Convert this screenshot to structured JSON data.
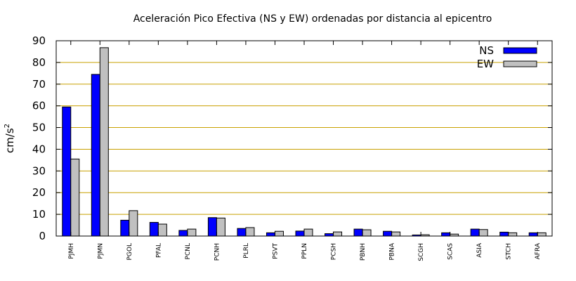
{
  "chart_data": {
    "type": "bar",
    "title": "Aceleración Pico Efectiva (NS y EW) ordenadas por distancia al epicentro",
    "xlabel": "",
    "ylabel": "cm/s",
    "ylabel_sup": "2",
    "ylim": [
      0,
      90
    ],
    "yticks": [
      0,
      10,
      20,
      30,
      40,
      50,
      60,
      70,
      80,
      90
    ],
    "grid": true,
    "legend_position": "top-right",
    "categories": [
      "PJMH",
      "PJMN",
      "PGOL",
      "PFAL",
      "PCNL",
      "PCNH",
      "PLRL",
      "PSVT",
      "PPLN",
      "PCSH",
      "PBNH",
      "PBNA",
      "SCGH",
      "SCAS",
      "ASIA",
      "STCH",
      "AFRA"
    ],
    "series": [
      {
        "name": "NS",
        "color": "#0000ff",
        "values": [
          59.5,
          74.5,
          7.3,
          6.3,
          2.6,
          8.5,
          3.5,
          1.5,
          2.3,
          1.1,
          3.2,
          2.2,
          0.5,
          1.5,
          3.2,
          1.8,
          1.5
        ]
      },
      {
        "name": "EW",
        "color": "#c0c0c0",
        "values": [
          35.5,
          86.8,
          11.7,
          5.5,
          3.2,
          8.3,
          3.9,
          2.2,
          3.2,
          1.9,
          2.9,
          1.9,
          0.6,
          0.9,
          3.0,
          1.5,
          1.5
        ]
      }
    ],
    "grid_color": "#c8a000"
  }
}
